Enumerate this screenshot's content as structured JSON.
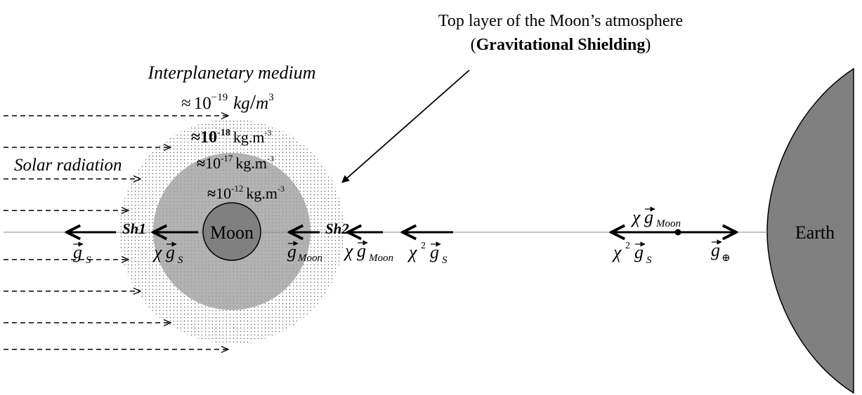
{
  "labels": {
    "top_layer_line1": "Top layer of the Moon’s atmosphere",
    "top_layer_paren_open": "(",
    "top_layer_bold": "Gravitational Shielding",
    "top_layer_paren_close": ")",
    "interplanetary_medium": "Interplanetary medium",
    "solar_radiation": "Solar radiation",
    "moon": "Moon",
    "earth": "Earth",
    "sh1": "Sh1",
    "sh2": "Sh2"
  },
  "densities": {
    "interplanetary": {
      "approx": "≈",
      "base": "10",
      "exp": "−19",
      "unit": "kg",
      "slash": "/",
      "unit2": "m",
      "unit2_exp": "3"
    },
    "outer_layer": {
      "approx": "≈",
      "base": "10",
      "exp": "-18",
      "unit": "kg.m",
      "unit_exp": "-3"
    },
    "middle_layer": {
      "approx": "≈",
      "base": "10",
      "exp": "-17",
      "unit": "kg.m",
      "unit_exp": "-3"
    },
    "inner_layer": {
      "approx": "≈",
      "base": "10",
      "exp": "-12",
      "unit": "kg.m",
      "unit_exp": "-3"
    }
  },
  "vectors": {
    "g_s": {
      "symbol": "g",
      "sub": "S"
    },
    "chi_g_s": {
      "chi": "χ",
      "symbol": "g",
      "sub": "S"
    },
    "g_moon": {
      "symbol": "g",
      "sub": "Moon"
    },
    "chi_g_moon": {
      "chi": "χ",
      "symbol": "g",
      "sub": "Moon"
    },
    "chi2_g_s": {
      "chi": "χ",
      "sq": "2",
      "symbol": "g",
      "sub": "S"
    },
    "chi_g_moon_earth": {
      "chi": "χ",
      "symbol": "g",
      "sub": "Moon"
    },
    "chi2_g_s_earth": {
      "chi": "χ",
      "sq": "2",
      "symbol": "g",
      "sub": "S"
    },
    "g_earth": {
      "symbol": "g",
      "sub": "⊕"
    }
  },
  "colors": {
    "moon_fill": "#808080",
    "earth_fill": "#808080",
    "atmosphere_fill": "#b3b3b3",
    "dots": "#555555"
  }
}
